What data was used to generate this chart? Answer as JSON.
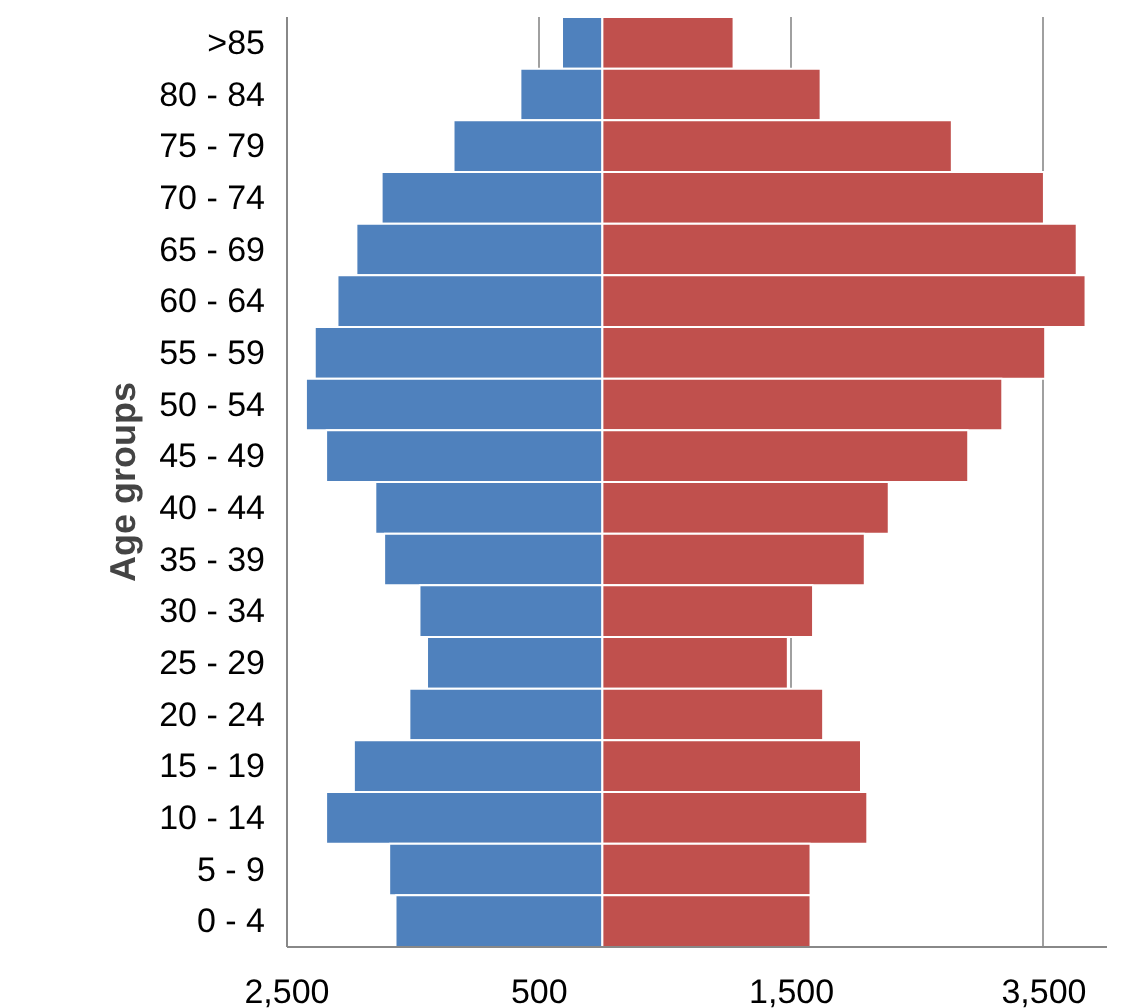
{
  "chart_data": {
    "type": "bar",
    "orientation": "horizontal",
    "stacked": true,
    "ylabel": "Age groups",
    "categories": [
      ">85",
      "80 - 84",
      "75 - 79",
      "70 - 74",
      "65 - 69",
      "60 - 64",
      "55 - 59",
      "50 - 54",
      "45 - 49",
      "40 - 44",
      "35 - 39",
      "30 - 34",
      "25 - 29",
      "20 - 24",
      "15 - 19",
      "10 - 14",
      "5 - 9",
      "0 - 4"
    ],
    "series": [
      {
        "color": "#4f81bd",
        "values": [
          -320,
          -650,
          -1180,
          -1750,
          -1950,
          -2100,
          -2280,
          -2350,
          -2190,
          -1800,
          -1730,
          -1450,
          -1390,
          -1530,
          -1970,
          -2190,
          -1690,
          -1640
        ]
      },
      {
        "color": "#c0504d",
        "values": [
          1040,
          1730,
          2770,
          3500,
          3760,
          3830,
          3510,
          3170,
          2900,
          2270,
          2080,
          1670,
          1470,
          1750,
          2050,
          2100,
          1650,
          1650
        ]
      }
    ],
    "xlim": [
      -2500,
      4000
    ],
    "xticks": [
      {
        "value": -2500,
        "label": "2,500"
      },
      {
        "value": -500,
        "label": "500"
      },
      {
        "value": 1500,
        "label": "1,500"
      },
      {
        "value": 3500,
        "label": "3,500"
      }
    ],
    "grid": "x"
  }
}
